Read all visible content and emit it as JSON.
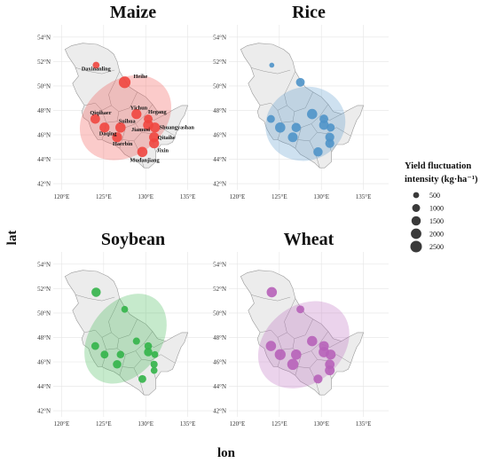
{
  "chart_data": {
    "type": "scatter",
    "subtype": "bubble-map",
    "xlabel": "lon",
    "ylabel": "lat",
    "xlim": [
      119,
      138
    ],
    "ylim": [
      41.5,
      55
    ],
    "x_ticks": [
      120,
      125,
      130,
      135
    ],
    "x_tick_labels": [
      "120°E",
      "125°E",
      "130°E",
      "135°E"
    ],
    "y_ticks": [
      42,
      44,
      46,
      48,
      50,
      52,
      54
    ],
    "y_tick_labels": [
      "42°N",
      "44°N",
      "46°N",
      "48°N",
      "50°N",
      "52°N",
      "54°N"
    ],
    "grid": true,
    "legend": {
      "placement": "right",
      "title_lines": [
        "Yield fluctuation",
        "intensity (kg·ha⁻¹)"
      ],
      "entries": [
        {
          "label": "500",
          "value": 500
        },
        {
          "label": "1000",
          "value": 1000
        },
        {
          "label": "1500",
          "value": 1500
        },
        {
          "label": "2000",
          "value": 2000
        },
        {
          "label": "2500",
          "value": 2500
        }
      ]
    },
    "cities": [
      {
        "name": "Daxinanling",
        "lon": 124.1,
        "lat": 51.7
      },
      {
        "name": "Heihe",
        "lon": 127.5,
        "lat": 50.3
      },
      {
        "name": "Yichun",
        "lon": 128.9,
        "lat": 47.7
      },
      {
        "name": "Hegang",
        "lon": 130.3,
        "lat": 47.3
      },
      {
        "name": "Qiqihaer",
        "lon": 124.0,
        "lat": 47.3
      },
      {
        "name": "Suihua",
        "lon": 127.0,
        "lat": 46.6
      },
      {
        "name": "Shuangyashan",
        "lon": 131.1,
        "lat": 46.6
      },
      {
        "name": "Jiamusi",
        "lon": 130.3,
        "lat": 46.8
      },
      {
        "name": "Daqing",
        "lon": 125.1,
        "lat": 46.6
      },
      {
        "name": "Qitaihe",
        "lon": 131.0,
        "lat": 45.8
      },
      {
        "name": "Haerbin",
        "lon": 126.6,
        "lat": 45.8
      },
      {
        "name": "Jixin",
        "lon": 131.0,
        "lat": 45.3
      },
      {
        "name": "Mudanjiang",
        "lon": 129.6,
        "lat": 44.6
      }
    ],
    "panels": [
      {
        "title": "Maize",
        "color": "#f0463f",
        "show_city_labels": true,
        "values": [
          700,
          2600,
          1800,
          1300,
          1600,
          1900,
          1800,
          1900,
          1800,
          1800,
          1800,
          1800,
          1900
        ],
        "ellipse": {
          "lon": 127.6,
          "lat": 47.4,
          "width_deg": 11.8,
          "height_deg": 6.2,
          "angle": -37
        }
      },
      {
        "title": "Rice",
        "color": "#4f94c9",
        "show_city_labels": false,
        "values": [
          300,
          1300,
          1900,
          1300,
          1000,
          1500,
          1100,
          1600,
          1900,
          1400,
          1700,
          1400,
          1500
        ],
        "ellipse": {
          "lon": 128.1,
          "lat": 46.9,
          "width_deg": 9.6,
          "height_deg": 6.0,
          "angle": -20
        }
      },
      {
        "title": "Soybean",
        "color": "#33b449",
        "show_city_labels": false,
        "values": [
          1500,
          700,
          800,
          900,
          1000,
          900,
          700,
          1200,
          1000,
          800,
          1200,
          700,
          1000
        ],
        "ellipse": {
          "lon": 127.6,
          "lat": 47.9,
          "width_deg": 11.8,
          "height_deg": 5.8,
          "angle": -53
        }
      },
      {
        "title": "Wheat",
        "color": "#b762b9",
        "show_city_labels": false,
        "values": [
          1900,
          1000,
          1900,
          1700,
          1900,
          1900,
          1800,
          2000,
          2200,
          1600,
          2300,
          1700,
          1400
        ],
        "ellipse": {
          "lon": 127.9,
          "lat": 47.4,
          "width_deg": 11.9,
          "height_deg": 6.3,
          "angle": -40
        }
      }
    ]
  }
}
